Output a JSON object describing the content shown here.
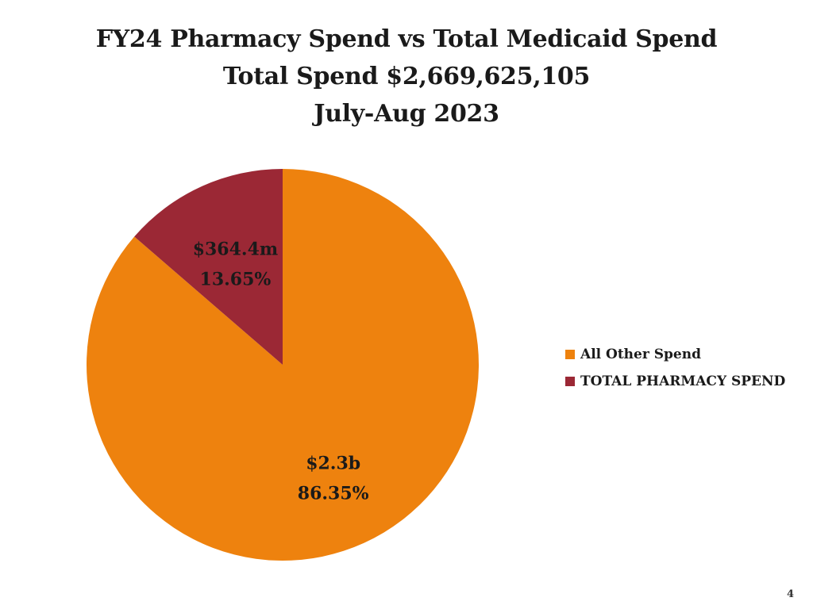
{
  "page": {
    "page_number": "4"
  },
  "colors": {
    "all_other": "#EE820E",
    "pharmacy": "#9B2835"
  },
  "chart_data": {
    "type": "pie",
    "title": "FY24 Pharmacy Spend vs Total Medicaid Spend",
    "subtitle_total": "Total Spend $2,669,625,105",
    "subtitle_period": "July-Aug 2023",
    "slices": [
      {
        "name": "All Other Spend",
        "value": 86.35,
        "amount_label": "$2.3b",
        "percent_label": "86.35%",
        "color": "#EE820E"
      },
      {
        "name": "TOTAL PHARMACY SPEND",
        "value": 13.65,
        "amount_label": "$364.4m",
        "percent_label": "13.65%",
        "color": "#9B2835"
      }
    ],
    "legend": [
      "All Other Spend",
      "TOTAL PHARMACY SPEND"
    ],
    "legend_placement": "right"
  }
}
